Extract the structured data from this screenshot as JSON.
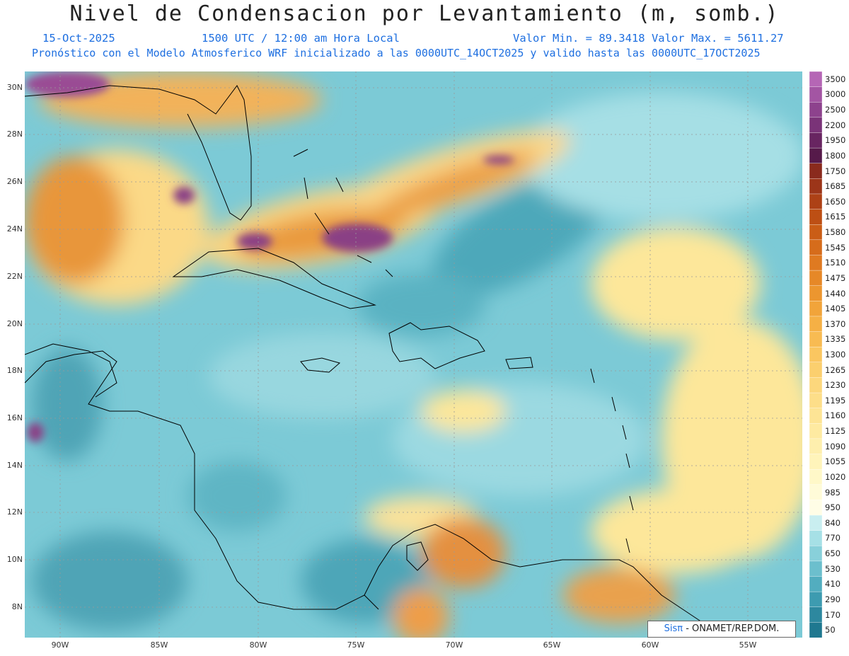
{
  "title": "Nivel de Condensacion por Levantamiento (m, somb.)",
  "date": "15-Oct-2025",
  "time": "1500 UTC / 12:00 am Hora Local",
  "minmax": "Valor Min. = 89.3418  Valor Max. = 5611.27",
  "forecast": "Pronóstico con el Modelo Atmosferico WRF inicializado a las 0000UTC_14OCT2025 y valido hasta las  0000UTC_17OCT2025",
  "credit_sis": "Sisπ",
  "credit_org": " - ONAMET/REP.DOM.",
  "lat_labels": [
    "30N",
    "28N",
    "26N",
    "24N",
    "22N",
    "20N",
    "18N",
    "16N",
    "14N",
    "12N",
    "10N",
    "8N"
  ],
  "lon_labels": [
    "90W",
    "85W",
    "80W",
    "75W",
    "70W",
    "65W",
    "60W",
    "55W"
  ],
  "colorbar": {
    "levels": [
      "3500",
      "3000",
      "2500",
      "2200",
      "1950",
      "1800",
      "1750",
      "1685",
      "1650",
      "1615",
      "1580",
      "1545",
      "1510",
      "1475",
      "1440",
      "1405",
      "1370",
      "1335",
      "1300",
      "1265",
      "1230",
      "1195",
      "1160",
      "1125",
      "1090",
      "1055",
      "1020",
      "985",
      "950",
      "840",
      "770",
      "650",
      "530",
      "410",
      "290",
      "170",
      "50"
    ],
    "colors": [
      "#b566b5",
      "#a355a3",
      "#8d428d",
      "#7a3378",
      "#682561",
      "#561a4a",
      "#8a2a1d",
      "#9c3519",
      "#ad4116",
      "#bd4f14",
      "#ca5d16",
      "#d66c1b",
      "#df7a21",
      "#e68827",
      "#ec962f",
      "#f1a43a",
      "#f5b045",
      "#f8bb52",
      "#fac660",
      "#fbcf6e",
      "#fcd77c",
      "#fdde89",
      "#fde495",
      "#feeaa1",
      "#feefad",
      "#fff4ba",
      "#fff8c8",
      "#fffbd8",
      "#fffde6",
      "#c9eef0",
      "#a6e0e6",
      "#88d0da",
      "#6cbfcd",
      "#52adbf",
      "#3d9bb0",
      "#2d889f",
      "#1f7890"
    ]
  },
  "map": {
    "lat_range": [
      7,
      31
    ],
    "lon_range": [
      -92,
      -52
    ],
    "field": "lifted condensation level (m), shaded",
    "colors": {
      "low": "#5fb8c8",
      "mid": "#a9e2e6",
      "high": "#fde79a",
      "orange": "#e8963a",
      "purple": "#8a3f85",
      "coast": "#000000"
    }
  }
}
